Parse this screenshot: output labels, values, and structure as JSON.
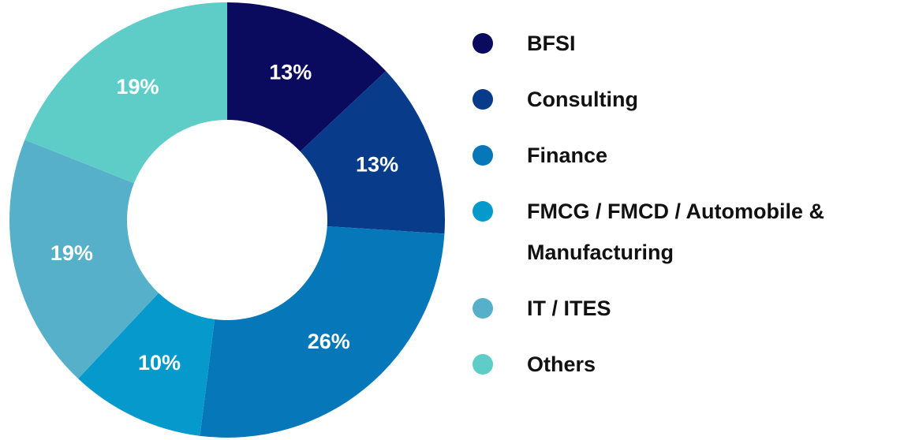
{
  "chart_data": {
    "type": "donut",
    "categories": [
      "BFSI",
      "Consulting",
      "Finance",
      "FMCG / FMCD / Automobile & Manufacturing",
      "IT / ITES",
      "Others"
    ],
    "values": [
      13,
      13,
      26,
      10,
      19,
      19
    ],
    "value_labels": [
      "13%",
      "13%",
      "26%",
      "10%",
      "19%",
      "19%"
    ],
    "colors": [
      "#0a0a5e",
      "#083c8a",
      "#0677b8",
      "#0599cc",
      "#57b0c9",
      "#5ecdc8"
    ]
  }
}
